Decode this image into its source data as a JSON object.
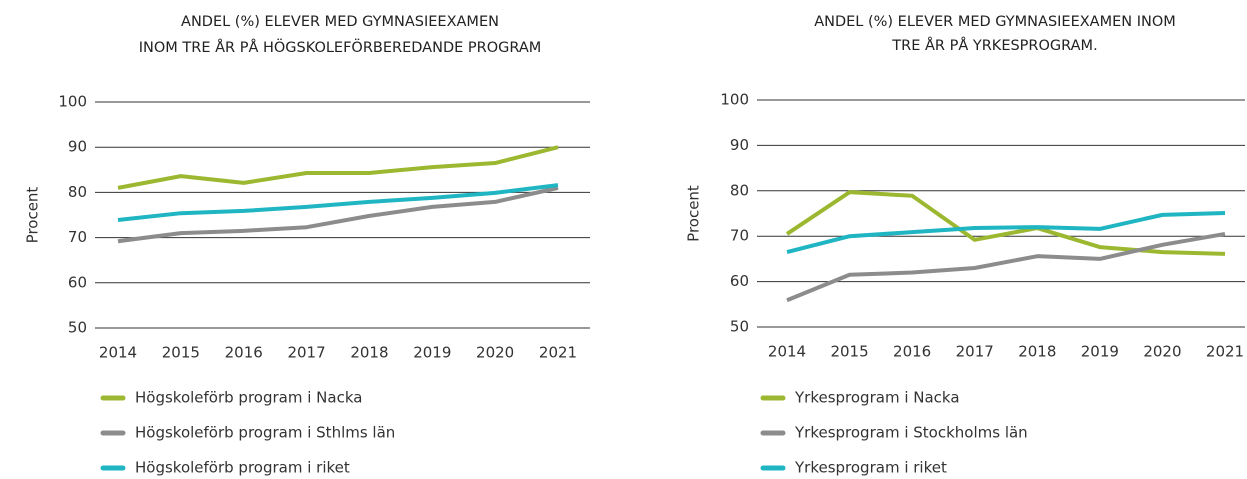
{
  "chart_data": [
    {
      "type": "line",
      "title": [
        "ANDEL (%) ELEVER MED GYMNASIEEXAMEN",
        "INOM TRE ÅR PÅ HÖGSKOLEFÖRBEREDANDE PROGRAM"
      ],
      "ylabel": "Procent",
      "categories": [
        "2014",
        "2015",
        "2016",
        "2017",
        "2018",
        "2019",
        "2020",
        "2021"
      ],
      "ylim": [
        50,
        100
      ],
      "yticks": [
        50,
        60,
        70,
        80,
        90,
        100
      ],
      "grid": true,
      "series": [
        {
          "name": "Högskoleförb program i Nacka",
          "color": "#9bb830",
          "values": [
            81.0,
            83.6,
            82.1,
            84.3,
            84.3,
            85.6,
            86.5,
            90.0
          ]
        },
        {
          "name": "Högskoleförb program i Sthlms län",
          "color": "#8c8c8c",
          "values": [
            69.2,
            71.0,
            71.5,
            72.3,
            74.8,
            76.8,
            77.9,
            81.0
          ]
        },
        {
          "name": "Högskoleförb program i riket",
          "color": "#1fb5c2",
          "values": [
            73.9,
            75.4,
            75.9,
            76.8,
            77.9,
            78.8,
            79.9,
            81.6
          ]
        }
      ]
    },
    {
      "type": "line",
      "title": [
        "ANDEL (%) ELEVER MED GYMNASIEEXAMEN INOM",
        "TRE ÅR PÅ YRKESPROGRAM."
      ],
      "ylabel": "Procent",
      "categories": [
        "2014",
        "2015",
        "2016",
        "2017",
        "2018",
        "2019",
        "2020",
        "2021"
      ],
      "ylim": [
        50,
        100
      ],
      "yticks": [
        50,
        60,
        70,
        80,
        90,
        100
      ],
      "grid": true,
      "series": [
        {
          "name": "Yrkesprogram i Nacka",
          "color": "#9bb830",
          "values": [
            70.5,
            79.7,
            78.9,
            69.2,
            71.8,
            67.6,
            66.5,
            66.1
          ]
        },
        {
          "name": "Yrkesprogram i Stockholms län",
          "color": "#8c8c8c",
          "values": [
            55.9,
            61.5,
            62.0,
            63.0,
            65.6,
            65.0,
            68.1,
            70.5
          ]
        },
        {
          "name": "Yrkesprogram i riket",
          "color": "#1fb5c2",
          "values": [
            66.5,
            70.0,
            70.9,
            71.8,
            72.0,
            71.6,
            74.7,
            75.1
          ]
        }
      ]
    }
  ]
}
